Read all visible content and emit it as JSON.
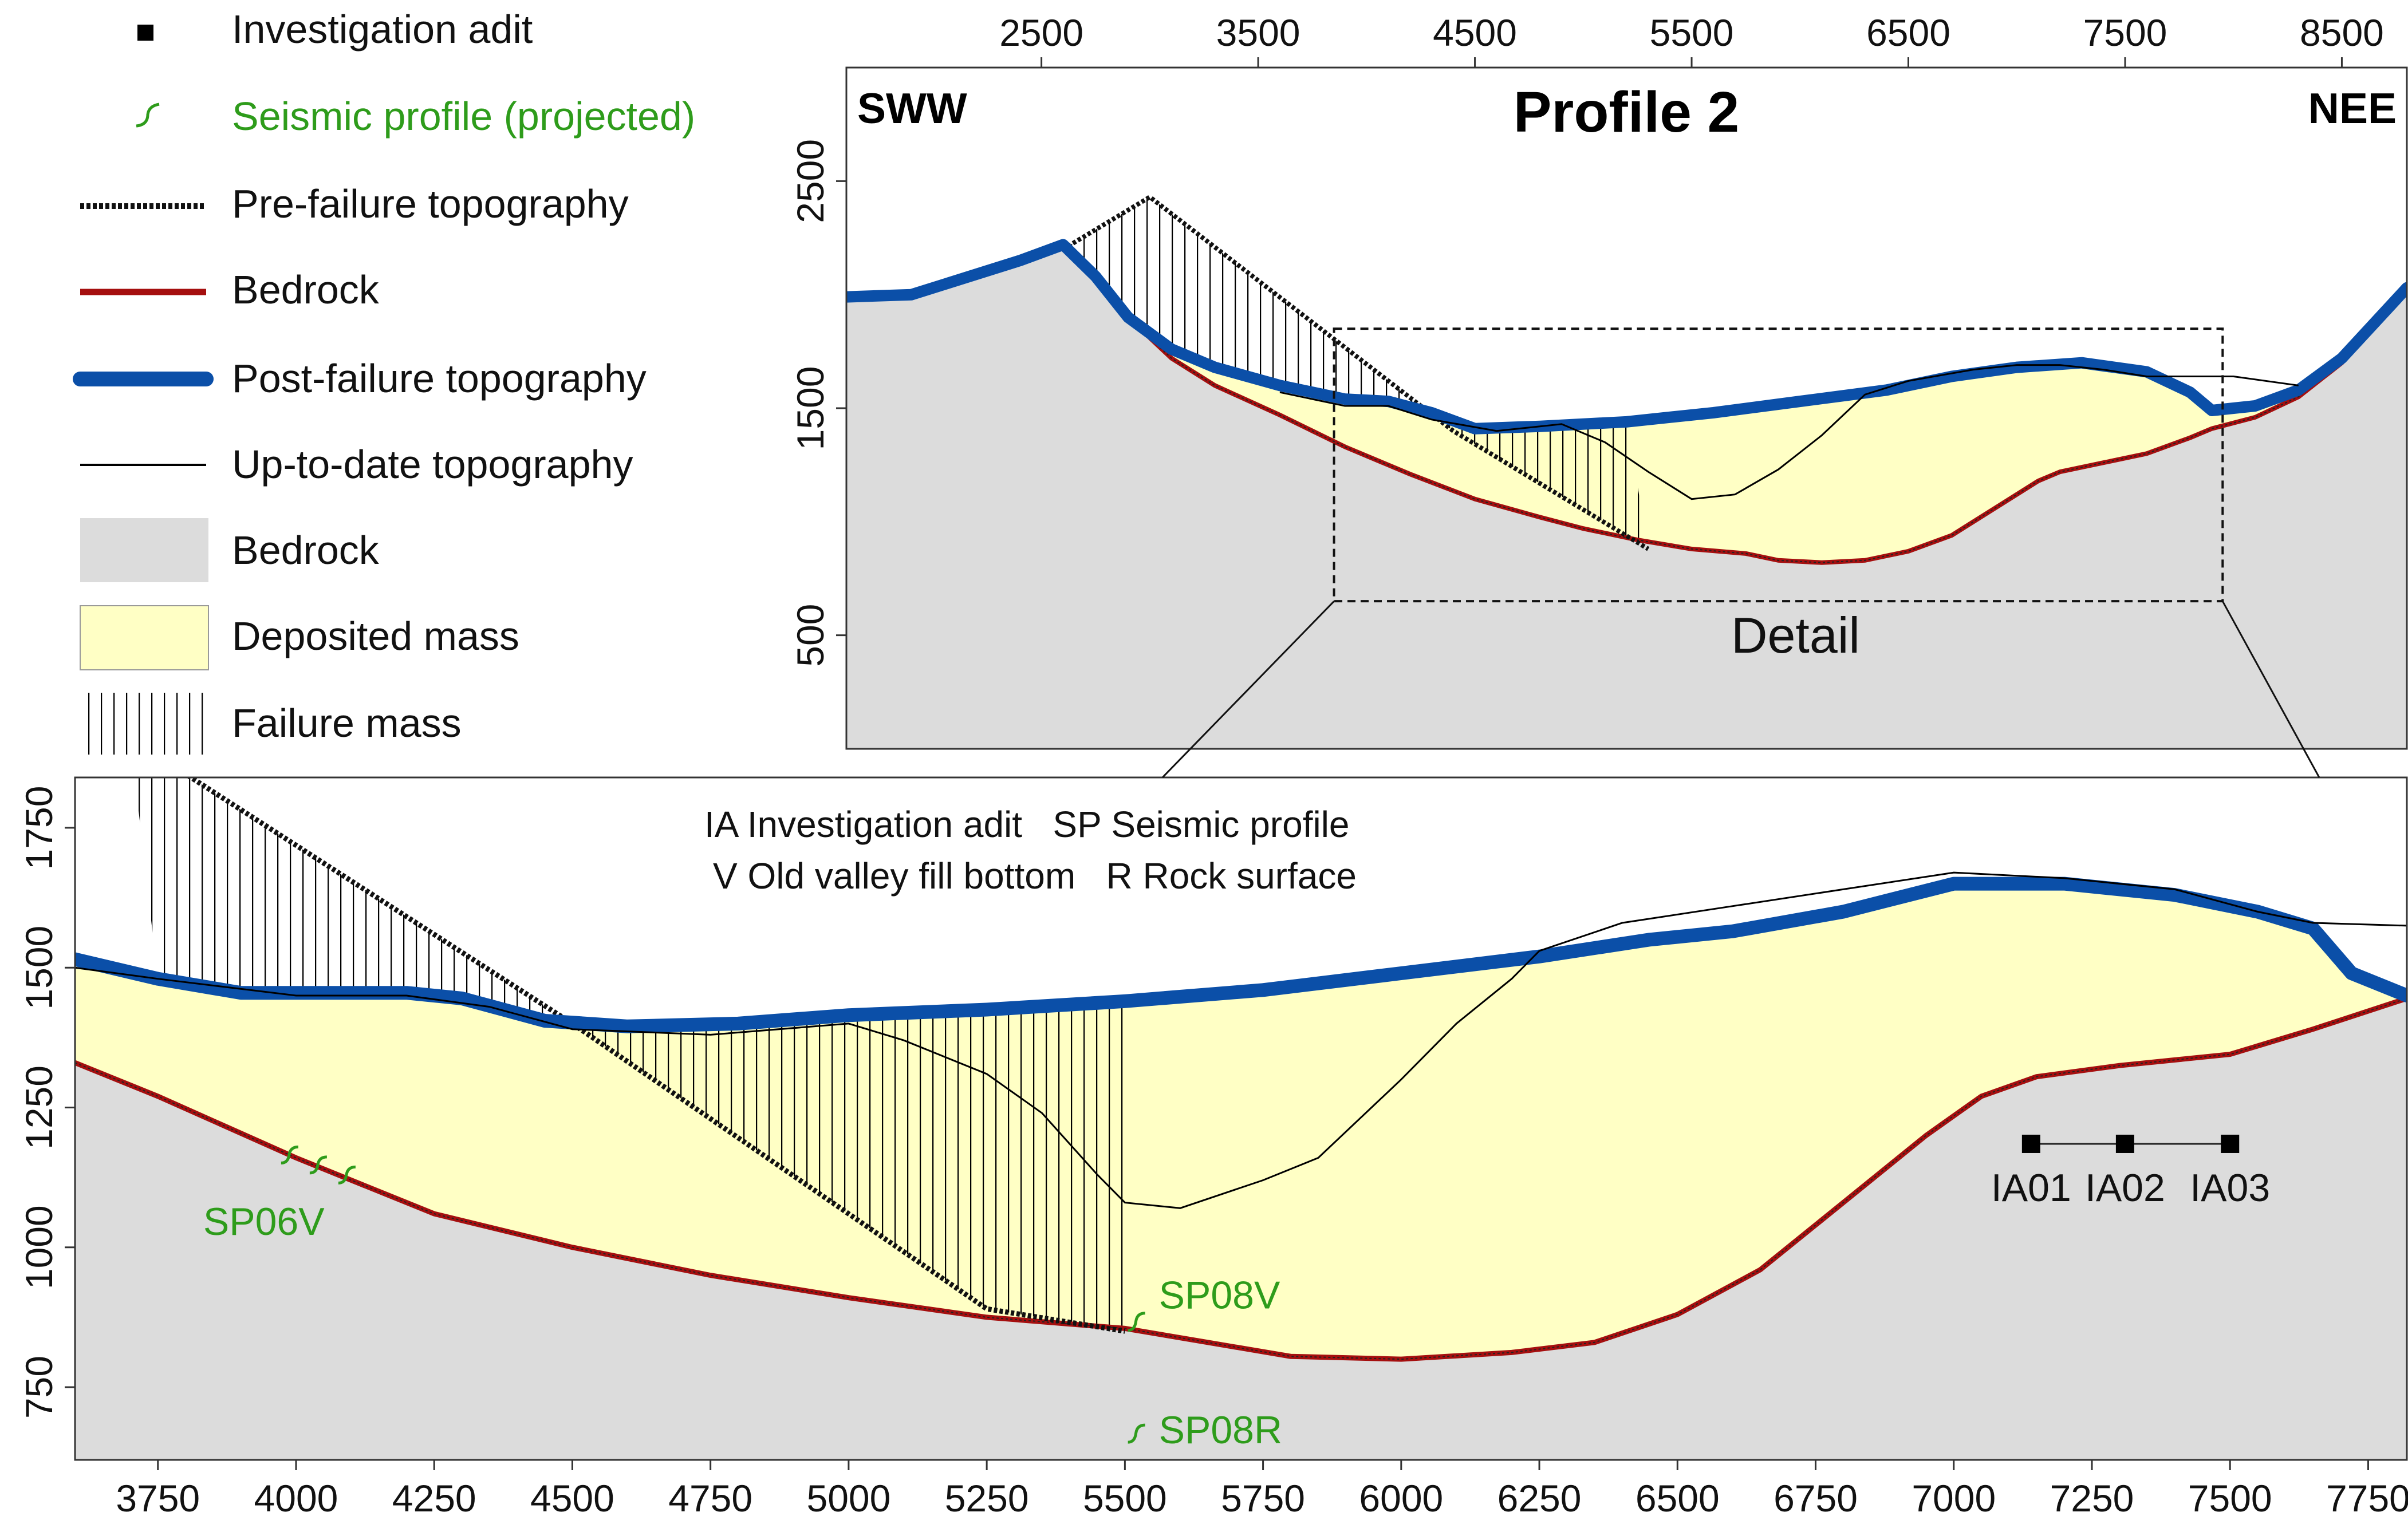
{
  "legend": {
    "items": [
      {
        "key": "adit",
        "label": "Investigation adit",
        "symbol": "square",
        "color": "#000000"
      },
      {
        "key": "seismic",
        "label": "Seismic profile (projected)",
        "symbol": "tick",
        "color": "#2e9c1b"
      },
      {
        "key": "prefailure",
        "label": "Pre-failure topography",
        "symbol": "dotted-line",
        "color": "#111111"
      },
      {
        "key": "bedrock_line",
        "label": "Bedrock",
        "symbol": "line",
        "color": "#a50f0f"
      },
      {
        "key": "postfailure",
        "label": "Post-failure topography",
        "symbol": "thick-line",
        "color": "#0b4fa8"
      },
      {
        "key": "uptodate",
        "label": "Up-to-date topography",
        "symbol": "thin-line",
        "color": "#000000"
      },
      {
        "key": "bedrock_area",
        "label": "Bedrock",
        "symbol": "fill",
        "color": "#dcdcdc"
      },
      {
        "key": "deposited",
        "label": "Deposited mass",
        "symbol": "fill",
        "color": "#ffffc5"
      },
      {
        "key": "failure",
        "label": "Failure mass",
        "symbol": "hatch",
        "color": "#000000"
      }
    ]
  },
  "chart_data": [
    {
      "type": "area",
      "title": "Profile 2",
      "corner_labels": {
        "left": "SWW",
        "right": "NEE"
      },
      "detail_label": "Detail",
      "xlim": [
        1600,
        8800
      ],
      "ylim": [
        0,
        3000
      ],
      "xticks": [
        2500,
        3500,
        4500,
        5500,
        6500,
        7500,
        8500
      ],
      "yticks": [
        500,
        1500,
        2500
      ],
      "detail_box": {
        "x": [
          3850,
          7950
        ],
        "y": [
          650,
          1850
        ]
      },
      "series": [
        {
          "key": "bedrock",
          "points": [
            [
              1600,
              1990
            ],
            [
              1900,
              2000
            ],
            [
              2400,
              2150
            ],
            [
              2600,
              2220
            ],
            [
              2750,
              2080
            ],
            [
              2900,
              1900
            ],
            [
              3100,
              1720
            ],
            [
              3300,
              1600
            ],
            [
              3600,
              1470
            ],
            [
              3900,
              1330
            ],
            [
              4200,
              1210
            ],
            [
              4500,
              1100
            ],
            [
              4800,
              1020
            ],
            [
              5000,
              970
            ],
            [
              5250,
              920
            ],
            [
              5500,
              880
            ],
            [
              5750,
              860
            ],
            [
              5900,
              830
            ],
            [
              6100,
              820
            ],
            [
              6300,
              830
            ],
            [
              6500,
              870
            ],
            [
              6700,
              940
            ],
            [
              6900,
              1060
            ],
            [
              7100,
              1180
            ],
            [
              7200,
              1220
            ],
            [
              7400,
              1260
            ],
            [
              7600,
              1300
            ],
            [
              7800,
              1370
            ],
            [
              7900,
              1410
            ],
            [
              8100,
              1460
            ],
            [
              8300,
              1550
            ],
            [
              8500,
              1700
            ],
            [
              8800,
              2030
            ]
          ]
        },
        {
          "key": "post_failure",
          "points": [
            [
              1600,
              1990
            ],
            [
              1900,
              2000
            ],
            [
              2400,
              2150
            ],
            [
              2600,
              2220
            ],
            [
              2750,
              2080
            ],
            [
              2900,
              1900
            ],
            [
              3100,
              1760
            ],
            [
              3300,
              1680
            ],
            [
              3600,
              1600
            ],
            [
              3900,
              1540
            ],
            [
              4100,
              1530
            ],
            [
              4300,
              1480
            ],
            [
              4500,
              1410
            ],
            [
              4800,
              1420
            ],
            [
              5200,
              1440
            ],
            [
              5600,
              1480
            ],
            [
              6000,
              1530
            ],
            [
              6400,
              1580
            ],
            [
              6700,
              1640
            ],
            [
              7000,
              1680
            ],
            [
              7300,
              1700
            ],
            [
              7600,
              1660
            ],
            [
              7800,
              1570
            ],
            [
              7900,
              1490
            ],
            [
              8100,
              1510
            ],
            [
              8300,
              1580
            ],
            [
              8500,
              1720
            ],
            [
              8800,
              2030
            ]
          ]
        },
        {
          "key": "up_to_date",
          "points": [
            [
              3600,
              1570
            ],
            [
              3900,
              1510
            ],
            [
              4100,
              1510
            ],
            [
              4300,
              1450
            ],
            [
              4600,
              1400
            ],
            [
              4900,
              1430
            ],
            [
              5100,
              1350
            ],
            [
              5300,
              1220
            ],
            [
              5500,
              1100
            ],
            [
              5700,
              1120
            ],
            [
              5900,
              1230
            ],
            [
              6100,
              1380
            ],
            [
              6300,
              1560
            ],
            [
              6500,
              1620
            ],
            [
              6800,
              1670
            ],
            [
              7000,
              1690
            ],
            [
              7200,
              1690
            ],
            [
              7400,
              1670
            ],
            [
              7600,
              1640
            ],
            [
              8000,
              1640
            ],
            [
              8300,
              1600
            ]
          ]
        },
        {
          "key": "pre_failure",
          "points": [
            [
              2600,
              2200
            ],
            [
              3000,
              2430
            ],
            [
              4400,
              1400
            ],
            [
              5300,
              880
            ]
          ]
        }
      ]
    },
    {
      "type": "area",
      "title": "",
      "info_lines": [
        "IA Investigation adit   SP Seismic profile",
        "V Old valley fill bottom   R Rock surface"
      ],
      "xlim": [
        3600,
        7820
      ],
      "ylim": [
        620,
        1840
      ],
      "xticks": [
        3750,
        4000,
        4250,
        4500,
        4750,
        5000,
        5250,
        5500,
        5750,
        6000,
        6250,
        6500,
        6750,
        7000,
        7250,
        7500,
        7750
      ],
      "yticks": [
        750,
        1000,
        1250,
        1500,
        1750
      ],
      "series": [
        {
          "key": "bedrock",
          "points": [
            [
              3600,
              1330
            ],
            [
              3750,
              1270
            ],
            [
              4000,
              1160
            ],
            [
              4250,
              1060
            ],
            [
              4500,
              1000
            ],
            [
              4750,
              950
            ],
            [
              5000,
              910
            ],
            [
              5250,
              875
            ],
            [
              5500,
              855
            ],
            [
              5650,
              830
            ],
            [
              5800,
              805
            ],
            [
              6000,
              800
            ],
            [
              6200,
              812
            ],
            [
              6350,
              830
            ],
            [
              6500,
              880
            ],
            [
              6650,
              960
            ],
            [
              6800,
              1080
            ],
            [
              6950,
              1200
            ],
            [
              7050,
              1270
            ],
            [
              7150,
              1305
            ],
            [
              7300,
              1325
            ],
            [
              7500,
              1345
            ],
            [
              7650,
              1390
            ],
            [
              7820,
              1445
            ]
          ]
        },
        {
          "key": "post_failure",
          "points": [
            [
              3600,
              1515
            ],
            [
              3750,
              1480
            ],
            [
              3900,
              1455
            ],
            [
              4000,
              1455
            ],
            [
              4200,
              1455
            ],
            [
              4300,
              1445
            ],
            [
              4450,
              1405
            ],
            [
              4600,
              1395
            ],
            [
              4800,
              1400
            ],
            [
              5000,
              1415
            ],
            [
              5250,
              1425
            ],
            [
              5500,
              1440
            ],
            [
              5750,
              1460
            ],
            [
              6000,
              1490
            ],
            [
              6250,
              1520
            ],
            [
              6450,
              1550
            ],
            [
              6600,
              1565
            ],
            [
              6800,
              1600
            ],
            [
              7000,
              1650
            ],
            [
              7200,
              1650
            ],
            [
              7400,
              1630
            ],
            [
              7550,
              1600
            ],
            [
              7650,
              1570
            ],
            [
              7720,
              1490
            ],
            [
              7820,
              1450
            ]
          ]
        },
        {
          "key": "up_to_date",
          "points": [
            [
              3600,
              1500
            ],
            [
              3750,
              1480
            ],
            [
              4000,
              1450
            ],
            [
              4200,
              1450
            ],
            [
              4350,
              1430
            ],
            [
              4500,
              1390
            ],
            [
              4750,
              1380
            ],
            [
              5000,
              1400
            ],
            [
              5100,
              1370
            ],
            [
              5250,
              1310
            ],
            [
              5350,
              1240
            ],
            [
              5450,
              1130
            ],
            [
              5500,
              1080
            ],
            [
              5600,
              1070
            ],
            [
              5750,
              1120
            ],
            [
              5850,
              1160
            ],
            [
              6000,
              1300
            ],
            [
              6100,
              1400
            ],
            [
              6200,
              1480
            ],
            [
              6250,
              1530
            ],
            [
              6400,
              1580
            ],
            [
              6600,
              1610
            ],
            [
              6800,
              1640
            ],
            [
              7000,
              1670
            ],
            [
              7200,
              1660
            ],
            [
              7400,
              1640
            ],
            [
              7550,
              1600
            ],
            [
              7650,
              1580
            ],
            [
              7820,
              1575
            ]
          ]
        },
        {
          "key": "pre_failure",
          "points": [
            [
              3700,
              1910
            ],
            [
              4500,
              1400
            ],
            [
              5250,
              890
            ],
            [
              5500,
              850
            ]
          ]
        }
      ],
      "adits": [
        {
          "label": "IA01",
          "x": 7140,
          "y": 1185
        },
        {
          "label": "IA02",
          "x": 7310,
          "y": 1185
        },
        {
          "label": "IA03",
          "x": 7500,
          "y": 1185
        }
      ],
      "seismic": [
        {
          "label": "SP06V",
          "x": 4060,
          "y": 1140
        },
        {
          "label": "SP08V",
          "x": 5520,
          "y": 870
        },
        {
          "label": "SP08R",
          "x": 5520,
          "y": 670
        }
      ]
    }
  ]
}
